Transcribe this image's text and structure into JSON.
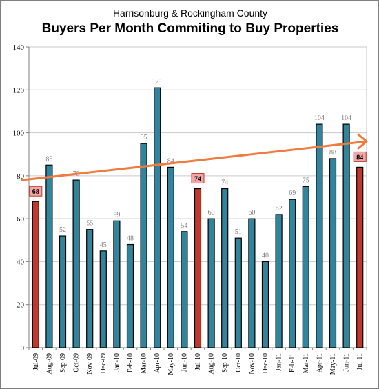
{
  "chart_data": {
    "type": "bar",
    "subtitle": "Harrisonburg & Rockingham County",
    "title": "Buyers Per Month Commiting to Buy Properties",
    "categories": [
      "Jul-09",
      "Aug-09",
      "Sep-09",
      "Oct-09",
      "Nov-09",
      "Dec-09",
      "Jan-10",
      "Feb-10",
      "Mar-10",
      "Apr-10",
      "May-10",
      "Jun-10",
      "Jul-10",
      "Aug-10",
      "Sep-10",
      "Oct-10",
      "Nov-10",
      "Dec-10",
      "Jan-11",
      "Feb-11",
      "Mar-11",
      "Apr-11",
      "May-11",
      "Jun-11",
      "Jul-11"
    ],
    "values": [
      68,
      85,
      52,
      78,
      55,
      45,
      59,
      48,
      95,
      121,
      84,
      54,
      74,
      60,
      74,
      51,
      60,
      40,
      62,
      69,
      75,
      104,
      88,
      104,
      84
    ],
    "highlighted": [
      "Jul-09",
      "Jul-10",
      "Jul-11"
    ],
    "ylim": [
      0,
      140
    ],
    "yticks": [
      0,
      20,
      40,
      60,
      80,
      100,
      120,
      140
    ],
    "grid": true,
    "trend_line": {
      "start": 78,
      "end": 96
    },
    "colors": {
      "bar": "#31849b",
      "bar_highlight": "#c0392b",
      "label_box": "#f4a6a6",
      "trend": "#f07b3f",
      "grid": "#c9c9c9"
    }
  }
}
